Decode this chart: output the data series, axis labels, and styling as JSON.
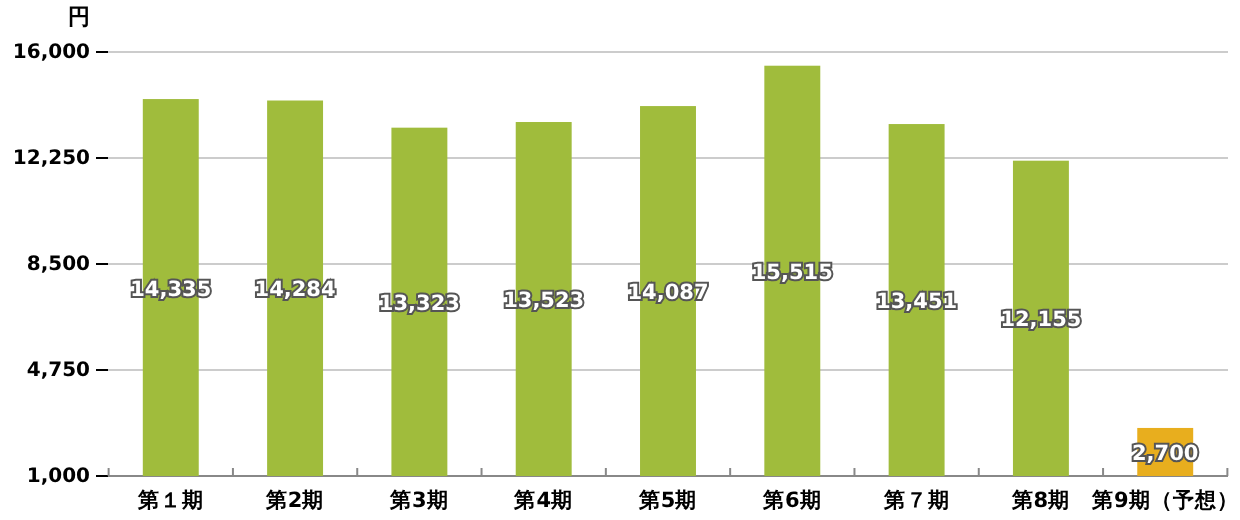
{
  "chart_data": {
    "type": "bar",
    "ylabel": "円",
    "categories": [
      "第１期",
      "第2期",
      "第3期",
      "第4期",
      "第5期",
      "第6期",
      "第７期",
      "第8期",
      "第9期（予想）"
    ],
    "values": [
      14335,
      14284,
      13323,
      13523,
      14087,
      15515,
      13451,
      12155,
      2700
    ],
    "colors": [
      "#a0bc3c",
      "#a0bc3c",
      "#a0bc3c",
      "#a0bc3c",
      "#a0bc3c",
      "#a0bc3c",
      "#a0bc3c",
      "#a0bc3c",
      "#e8ae1e"
    ],
    "ylim": [
      1000,
      16000
    ],
    "yticks": [
      {
        "value": 1000,
        "label": "1,000"
      },
      {
        "value": 4750,
        "label": "4,750"
      },
      {
        "value": 8500,
        "label": "8,500"
      },
      {
        "value": 12250,
        "label": "12,250"
      },
      {
        "value": 16000,
        "label": "16,000"
      }
    ],
    "value_labels": [
      "14,335",
      "14,284",
      "13,323",
      "13,523",
      "14,087",
      "15,515",
      "13,451",
      "12,155",
      "2,700"
    ],
    "grid": "y"
  }
}
